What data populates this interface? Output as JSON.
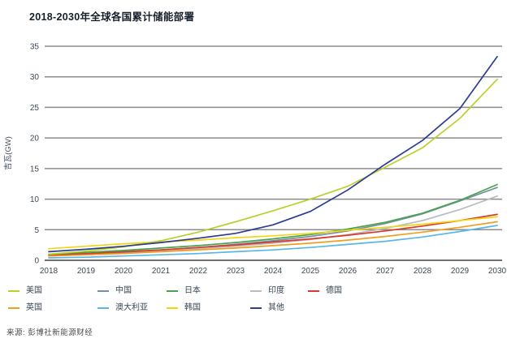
{
  "title": "2018-2030年全球各国累计储能部署",
  "source": "来源: 彭博社新能源财经",
  "chart_data": {
    "type": "line",
    "title": "2018-2030年全球各国累计储能部署",
    "xlabel": "",
    "ylabel": "吉瓦(GW)",
    "ylim": [
      0,
      35
    ],
    "ytick_step": 5,
    "grid": true,
    "legend_position": "bottom",
    "axis_text_color": "#3d4856",
    "gridline_color": "#8c8c8c",
    "zeroline_color": "#707070",
    "x": [
      2018,
      2019,
      2020,
      2021,
      2022,
      2023,
      2024,
      2025,
      2026,
      2027,
      2028,
      2029,
      2030
    ],
    "series": [
      {
        "name": "美国",
        "color": "#bccf2d",
        "values": [
          1.0,
          1.5,
          2.2,
          3.2,
          4.6,
          6.3,
          8.1,
          10.0,
          12.1,
          15.2,
          18.4,
          23.2,
          29.6
        ]
      },
      {
        "name": "中国",
        "color": "#7a8da3",
        "values": [
          0.8,
          1.0,
          1.3,
          1.7,
          2.1,
          2.6,
          3.2,
          3.9,
          4.8,
          6.0,
          7.6,
          9.7,
          11.9
        ]
      },
      {
        "name": "日本",
        "color": "#47a34e",
        "values": [
          1.0,
          1.3,
          1.6,
          2.0,
          2.4,
          2.9,
          3.5,
          4.2,
          5.1,
          6.2,
          7.7,
          9.8,
          12.4
        ]
      },
      {
        "name": "印度",
        "color": "#b7bcc3",
        "values": [
          0.7,
          0.9,
          1.2,
          1.5,
          1.9,
          2.3,
          2.8,
          3.4,
          4.2,
          5.2,
          6.5,
          8.3,
          10.5
        ]
      },
      {
        "name": "德国",
        "color": "#d93a2b",
        "values": [
          0.9,
          1.1,
          1.4,
          1.7,
          2.1,
          2.5,
          3.0,
          3.5,
          4.1,
          4.8,
          5.6,
          6.5,
          7.5
        ]
      },
      {
        "name": "英国",
        "color": "#f09e1f",
        "values": [
          0.7,
          0.9,
          1.1,
          1.4,
          1.7,
          2.0,
          2.4,
          2.8,
          3.3,
          3.9,
          4.6,
          5.4,
          6.3
        ]
      },
      {
        "name": "澳大利亚",
        "color": "#5ab6e8",
        "values": [
          0.4,
          0.5,
          0.7,
          0.9,
          1.1,
          1.4,
          1.7,
          2.1,
          2.6,
          3.1,
          3.8,
          4.7,
          5.7
        ]
      },
      {
        "name": "韩国",
        "color": "#f2d614",
        "values": [
          1.9,
          2.3,
          2.7,
          3.0,
          3.3,
          3.7,
          4.0,
          4.4,
          4.9,
          5.4,
          5.9,
          6.5,
          7.1
        ]
      },
      {
        "name": "其他",
        "color": "#2c3d92",
        "values": [
          1.4,
          1.8,
          2.3,
          2.9,
          3.6,
          4.4,
          5.8,
          8.0,
          11.5,
          15.7,
          19.6,
          24.8,
          33.3
        ]
      }
    ],
    "draw_order": [
      3,
      1,
      6,
      5,
      4,
      2,
      7,
      0,
      8
    ]
  }
}
